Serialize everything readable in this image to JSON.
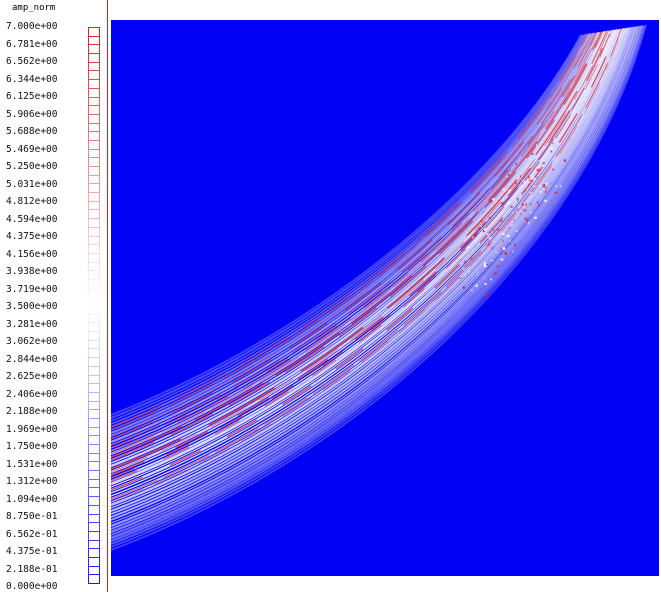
{
  "colorbar": {
    "title": "amp_norm",
    "ticks": [
      "7.000e+00",
      "6.781e+00",
      "6.562e+00",
      "6.344e+00",
      "6.125e+00",
      "5.906e+00",
      "5.688e+00",
      "5.469e+00",
      "5.250e+00",
      "5.031e+00",
      "4.812e+00",
      "4.594e+00",
      "4.375e+00",
      "4.156e+00",
      "3.938e+00",
      "3.719e+00",
      "3.500e+00",
      "3.281e+00",
      "3.062e+00",
      "2.844e+00",
      "2.625e+00",
      "2.406e+00",
      "2.188e+00",
      "1.969e+00",
      "1.750e+00",
      "1.531e+00",
      "1.312e+00",
      "1.094e+00",
      "8.750e-01",
      "6.562e-01",
      "4.375e-01",
      "2.188e-01",
      "0.000e+00"
    ],
    "min": 0,
    "max": 7,
    "colors": {
      "low": "#1a1aff",
      "mid": "#ffffff",
      "high": "#e02020"
    }
  },
  "chart_data": {
    "type": "heatmap",
    "field": "amp_norm",
    "value_range": [
      0,
      7
    ],
    "background_color": "#0000f5",
    "colormap": [
      "#1a1aff",
      "#ffffff",
      "#e02020"
    ]
  },
  "ui": {
    "divider_color": "#d22222"
  }
}
